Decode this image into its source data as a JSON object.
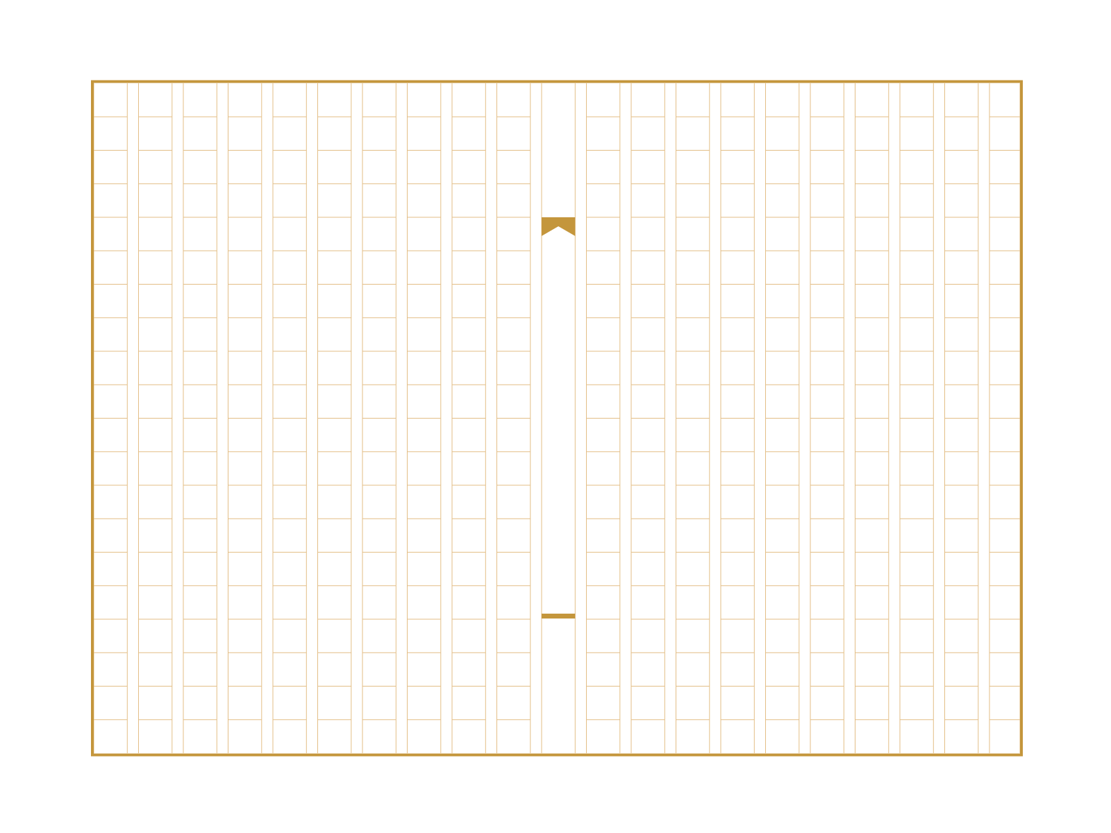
{
  "sheet": {
    "kind": "genkou-yoshi manuscript paper",
    "columns": 20,
    "rows_per_column": 20,
    "has_center_fold_column": true,
    "has_fishtail_marker": true,
    "colors": {
      "frame": "#C4963C",
      "grid_line": "#E3BE86",
      "background": "#FFFFFF"
    }
  }
}
